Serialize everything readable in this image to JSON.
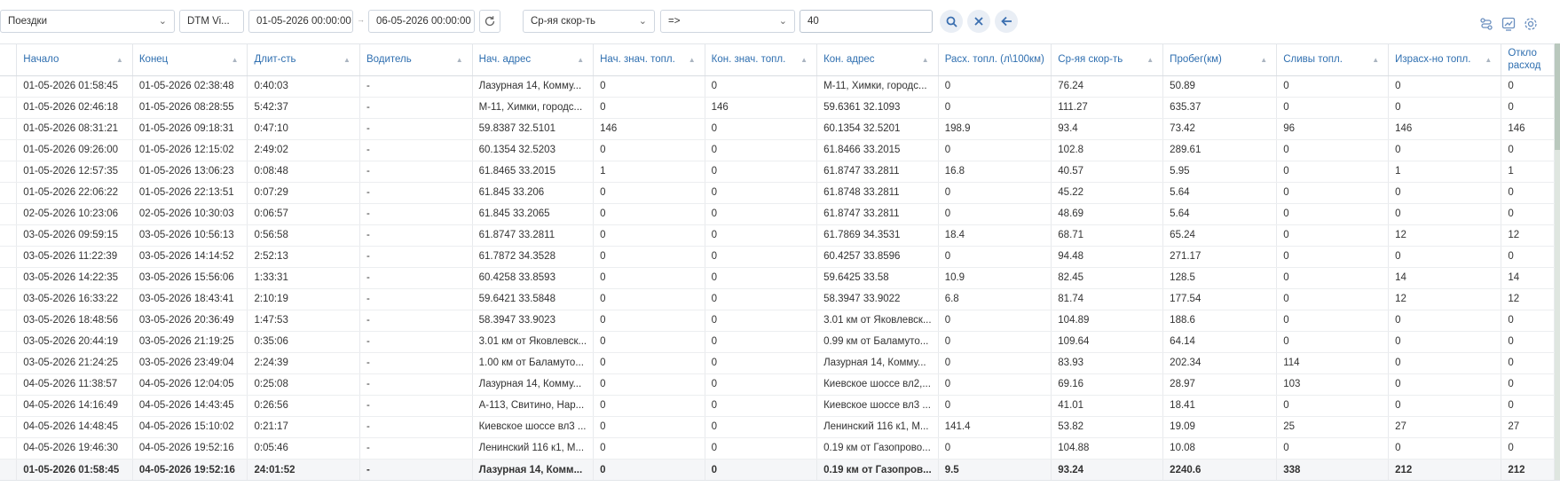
{
  "toolbar": {
    "report_type": "Поездки",
    "object": "DTM Vi...",
    "date_from": "01-05-2026 00:00:00",
    "date_to": "06-05-2026 00:00:00",
    "filter_field": "Ср-яя скор-ть",
    "filter_operator": "=>",
    "filter_value": "40",
    "icons": [
      "refresh-icon",
      "search-icon",
      "clear-icon",
      "back-icon",
      "route-icon",
      "chart-icon",
      "settings-icon"
    ],
    "accent_color": "#3b6fb0"
  },
  "columns": [
    "",
    "Начало",
    "Конец",
    "Длит-сть",
    "Водитель",
    "Нач. адрес",
    "Нач. знач. топл.",
    "Кон. знач. топл.",
    "Кон. адрес",
    "Расх. топл. (л\\100км)",
    "Ср-яя скор-ть",
    "Пробег(км)",
    "Сливы топл.",
    "Израсх-но топл.",
    "Откло расход"
  ],
  "rows": [
    [
      "",
      "01-05-2026 01:58:45",
      "01-05-2026 02:38:48",
      "0:40:03",
      "-",
      "Лазурная 14, Комму...",
      "0",
      "0",
      "М-11, Химки, городс...",
      "0",
      "76.24",
      "50.89",
      "0",
      "0",
      "0"
    ],
    [
      "",
      "01-05-2026 02:46:18",
      "01-05-2026 08:28:55",
      "5:42:37",
      "-",
      "М-11, Химки, городс...",
      "0",
      "146",
      "59.6361 32.1093",
      "0",
      "111.27",
      "635.37",
      "0",
      "0",
      "0"
    ],
    [
      "",
      "01-05-2026 08:31:21",
      "01-05-2026 09:18:31",
      "0:47:10",
      "-",
      "59.8387 32.5101",
      "146",
      "0",
      "60.1354 32.5201",
      "198.9",
      "93.4",
      "73.42",
      "96",
      "146",
      "146"
    ],
    [
      "",
      "01-05-2026 09:26:00",
      "01-05-2026 12:15:02",
      "2:49:02",
      "-",
      "60.1354 32.5203",
      "0",
      "0",
      "61.8466 33.2015",
      "0",
      "102.8",
      "289.61",
      "0",
      "0",
      "0"
    ],
    [
      "",
      "01-05-2026 12:57:35",
      "01-05-2026 13:06:23",
      "0:08:48",
      "-",
      "61.8465 33.2015",
      "1",
      "0",
      "61.8747 33.2811",
      "16.8",
      "40.57",
      "5.95",
      "0",
      "1",
      "1"
    ],
    [
      "",
      "01-05-2026 22:06:22",
      "01-05-2026 22:13:51",
      "0:07:29",
      "-",
      "61.845 33.206",
      "0",
      "0",
      "61.8748 33.2811",
      "0",
      "45.22",
      "5.64",
      "0",
      "0",
      "0"
    ],
    [
      "",
      "02-05-2026 10:23:06",
      "02-05-2026 10:30:03",
      "0:06:57",
      "-",
      "61.845 33.2065",
      "0",
      "0",
      "61.8747 33.2811",
      "0",
      "48.69",
      "5.64",
      "0",
      "0",
      "0"
    ],
    [
      "",
      "03-05-2026 09:59:15",
      "03-05-2026 10:56:13",
      "0:56:58",
      "-",
      "61.8747 33.2811",
      "0",
      "0",
      "61.7869 34.3531",
      "18.4",
      "68.71",
      "65.24",
      "0",
      "12",
      "12"
    ],
    [
      "",
      "03-05-2026 11:22:39",
      "03-05-2026 14:14:52",
      "2:52:13",
      "-",
      "61.7872 34.3528",
      "0",
      "0",
      "60.4257 33.8596",
      "0",
      "94.48",
      "271.17",
      "0",
      "0",
      "0"
    ],
    [
      "",
      "03-05-2026 14:22:35",
      "03-05-2026 15:56:06",
      "1:33:31",
      "-",
      "60.4258 33.8593",
      "0",
      "0",
      "59.6425 33.58",
      "10.9",
      "82.45",
      "128.5",
      "0",
      "14",
      "14"
    ],
    [
      "",
      "03-05-2026 16:33:22",
      "03-05-2026 18:43:41",
      "2:10:19",
      "-",
      "59.6421 33.5848",
      "0",
      "0",
      "58.3947 33.9022",
      "6.8",
      "81.74",
      "177.54",
      "0",
      "12",
      "12"
    ],
    [
      "",
      "03-05-2026 18:48:56",
      "03-05-2026 20:36:49",
      "1:47:53",
      "-",
      "58.3947 33.9023",
      "0",
      "0",
      "3.01 км от Яковлевск...",
      "0",
      "104.89",
      "188.6",
      "0",
      "0",
      "0"
    ],
    [
      "",
      "03-05-2026 20:44:19",
      "03-05-2026 21:19:25",
      "0:35:06",
      "-",
      "3.01 км от Яковлевск...",
      "0",
      "0",
      "0.99 км от Баламуто...",
      "0",
      "109.64",
      "64.14",
      "0",
      "0",
      "0"
    ],
    [
      "",
      "03-05-2026 21:24:25",
      "03-05-2026 23:49:04",
      "2:24:39",
      "-",
      "1.00 км от Баламуто...",
      "0",
      "0",
      "Лазурная 14, Комму...",
      "0",
      "83.93",
      "202.34",
      "114",
      "0",
      "0"
    ],
    [
      "",
      "04-05-2026 11:38:57",
      "04-05-2026 12:04:05",
      "0:25:08",
      "-",
      "Лазурная 14, Комму...",
      "0",
      "0",
      "Киевское шоссе вл2,...",
      "0",
      "69.16",
      "28.97",
      "103",
      "0",
      "0"
    ],
    [
      "",
      "04-05-2026 14:16:49",
      "04-05-2026 14:43:45",
      "0:26:56",
      "-",
      "А-113, Свитино, Нар...",
      "0",
      "0",
      "Киевское шоссе вл3 ...",
      "0",
      "41.01",
      "18.41",
      "0",
      "0",
      "0"
    ],
    [
      "",
      "04-05-2026 14:48:45",
      "04-05-2026 15:10:02",
      "0:21:17",
      "-",
      "Киевское шоссе вл3 ...",
      "0",
      "0",
      "Ленинский 116 к1, М...",
      "141.4",
      "53.82",
      "19.09",
      "25",
      "27",
      "27"
    ],
    [
      "",
      "04-05-2026 19:46:30",
      "04-05-2026 19:52:16",
      "0:05:46",
      "-",
      "Ленинский 116 к1, М...",
      "0",
      "0",
      "0.19 км от Газопрово...",
      "0",
      "104.88",
      "10.08",
      "0",
      "0",
      "0"
    ]
  ],
  "total": [
    "",
    "01-05-2026 01:58:45",
    "04-05-2026 19:52:16",
    "24:01:52",
    "-",
    "Лазурная 14, Комм...",
    "0",
    "0",
    "0.19 км от Газопров...",
    "9.5",
    "93.24",
    "2240.6",
    "338",
    "212",
    "212"
  ]
}
